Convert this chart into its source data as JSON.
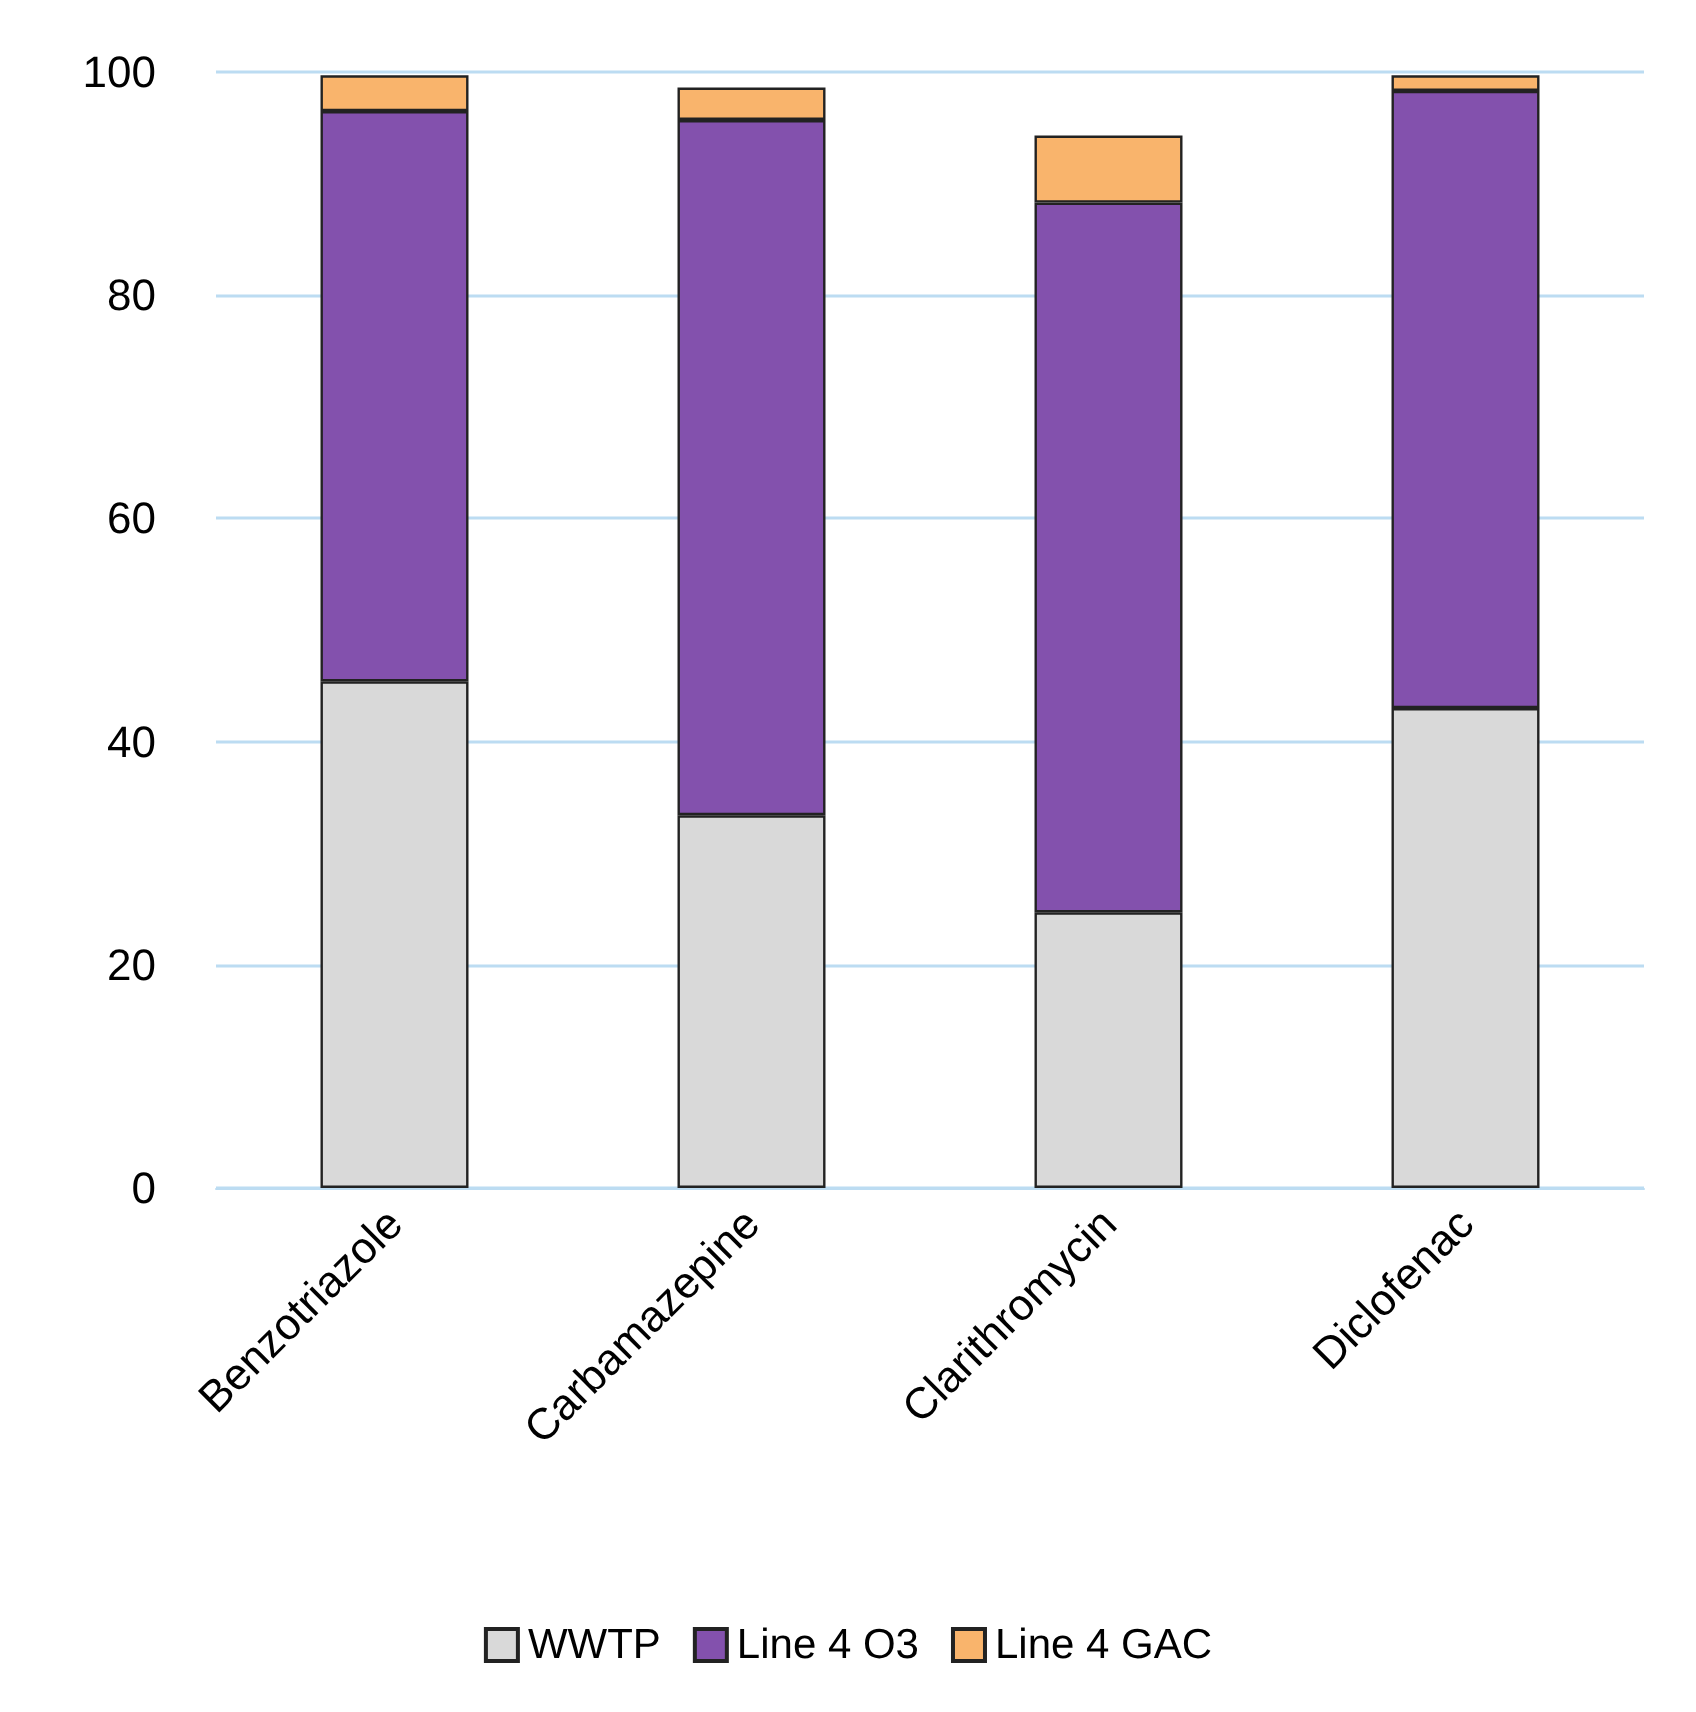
{
  "chart_data": {
    "type": "bar",
    "stacked": true,
    "categories": [
      "Benzotriazole",
      "Carbamazepine",
      "Clarithromycin",
      "Diclofenac"
    ],
    "series": [
      {
        "name": "WWTP",
        "color": "#d9d9d9",
        "values": [
          45.4,
          33.4,
          24.7,
          43.0
        ]
      },
      {
        "name": "Line 4 O3",
        "color": "#8351ad",
        "values": [
          51.1,
          62.3,
          63.6,
          55.3
        ]
      },
      {
        "name": "Line 4 GAC",
        "color": "#f9b46c",
        "values": [
          3.2,
          2.9,
          6.0,
          1.4
        ]
      }
    ],
    "ylim": [
      0,
      100
    ],
    "yticks": [
      0,
      20,
      40,
      60,
      80,
      100
    ],
    "grid": "y",
    "legend": "bottom"
  }
}
